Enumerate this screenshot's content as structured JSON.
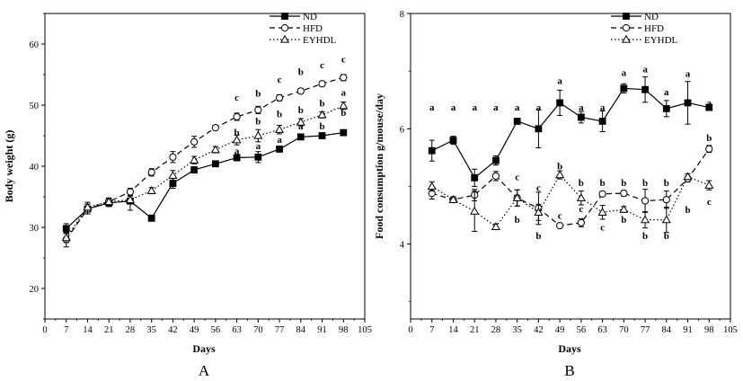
{
  "chart_data": [
    {
      "type": "line",
      "panel_label": "A",
      "xlabel": "Days",
      "ylabel": "Body weight (g)",
      "xlim": [
        0,
        105
      ],
      "ylim": [
        15,
        65
      ],
      "x_ticks": [
        0,
        7,
        14,
        21,
        28,
        35,
        42,
        49,
        56,
        63,
        70,
        77,
        84,
        91,
        98,
        105
      ],
      "y_ticks": [
        20,
        30,
        40,
        50,
        60
      ],
      "x": [
        7,
        14,
        21,
        28,
        35,
        42,
        49,
        56,
        63,
        70,
        77,
        84,
        91,
        98
      ],
      "legend_position": "top-right",
      "series": [
        {
          "name": "ND",
          "marker": "filled-square",
          "line": "solid",
          "values": [
            29.8,
            33,
            34,
            34.3,
            31.5,
            37.2,
            39.4,
            40.4,
            41.4,
            41.5,
            42.8,
            44.8,
            45,
            45.5
          ],
          "errors": [
            0.8,
            0.8,
            0.6,
            1.5,
            0.5,
            0.8,
            0.5,
            0.4,
            0.5,
            0.9,
            0.4,
            0.4,
            0.3,
            0.3
          ]
        },
        {
          "name": "HFD",
          "marker": "open-circle",
          "line": "dashed",
          "values": [
            28,
            33,
            34.2,
            35.8,
            39,
            41.5,
            44,
            46.3,
            48.1,
            49.2,
            51.2,
            52.3,
            53.5,
            54.5
          ],
          "errors": [
            1.2,
            0.8,
            0.6,
            0.6,
            0.6,
            0.9,
            0.9,
            0.4,
            0.6,
            0.6,
            0.5,
            0.4,
            0.4,
            0.5
          ]
        },
        {
          "name": "EYHDL",
          "marker": "open-triangle",
          "line": "dotted",
          "values": [
            28.3,
            33.3,
            34.2,
            34.5,
            36,
            38.5,
            41,
            42.7,
            44.3,
            45,
            46,
            47.2,
            48.4,
            49.9
          ],
          "errors": [
            0.8,
            0.8,
            0.6,
            0.6,
            0.5,
            0.8,
            0.6,
            0.5,
            0.8,
            1.0,
            0.7,
            0.6,
            0.5,
            0.6
          ]
        }
      ],
      "significance_labels": [
        {
          "x": 63,
          "y": 51.3,
          "text": "c"
        },
        {
          "x": 63,
          "y": 45.6,
          "text": "b"
        },
        {
          "x": 63,
          "y": 42.6,
          "text": "a"
        },
        {
          "x": 70,
          "y": 52.0,
          "text": "b"
        },
        {
          "x": 70,
          "y": 47.4,
          "text": "b"
        },
        {
          "x": 70,
          "y": 43.4,
          "text": "a"
        },
        {
          "x": 77,
          "y": 54.3,
          "text": "c"
        },
        {
          "x": 77,
          "y": 48.6,
          "text": "b"
        },
        {
          "x": 77,
          "y": 44.4,
          "text": "a"
        },
        {
          "x": 84,
          "y": 55.5,
          "text": "b"
        },
        {
          "x": 84,
          "y": 49.3,
          "text": "b"
        },
        {
          "x": 84,
          "y": 46.6,
          "text": "a"
        },
        {
          "x": 91,
          "y": 56.6,
          "text": "c"
        },
        {
          "x": 91,
          "y": 50.4,
          "text": "b"
        },
        {
          "x": 91,
          "y": 46.6,
          "text": "b"
        },
        {
          "x": 98,
          "y": 57.6,
          "text": "c"
        },
        {
          "x": 98,
          "y": 52.1,
          "text": "a"
        },
        {
          "x": 98,
          "y": 48.8,
          "text": "b"
        }
      ]
    },
    {
      "type": "line",
      "panel_label": "B",
      "xlabel": "Days",
      "ylabel": "Food consumption g/mouse/day",
      "xlim": [
        0,
        105
      ],
      "ylim": [
        2.7,
        8
      ],
      "x_ticks": [
        0,
        7,
        14,
        21,
        28,
        35,
        42,
        49,
        56,
        63,
        70,
        77,
        84,
        91,
        98,
        105
      ],
      "y_ticks": [
        4,
        6,
        8
      ],
      "x": [
        7,
        14,
        21,
        28,
        35,
        42,
        49,
        56,
        63,
        70,
        77,
        84,
        91,
        98
      ],
      "legend_position": "top-right",
      "series": [
        {
          "name": "ND",
          "marker": "filled-square",
          "line": "solid",
          "values": [
            5.62,
            5.8,
            5.15,
            5.45,
            6.13,
            6.0,
            6.45,
            6.2,
            6.13,
            6.7,
            6.68,
            6.35,
            6.45,
            6.37
          ],
          "errors": [
            0.18,
            0.07,
            0.15,
            0.08,
            0.0,
            0.33,
            0.22,
            0.1,
            0.18,
            0.08,
            0.22,
            0.14,
            0.37,
            0.05
          ]
        },
        {
          "name": "HFD",
          "marker": "open-circle",
          "line": "dashed",
          "values": [
            4.88,
            4.77,
            4.85,
            5.18,
            4.8,
            4.62,
            4.32,
            4.37,
            4.87,
            4.88,
            4.75,
            4.77,
            5.13,
            5.65
          ],
          "errors": [
            0.1,
            0.04,
            0.1,
            0.08,
            0.14,
            0.28,
            0.03,
            0.07,
            0.03,
            0.05,
            0.2,
            0.15,
            0.05,
            0.06
          ]
        },
        {
          "name": "EYHDL",
          "marker": "open-triangle",
          "line": "dotted",
          "values": [
            5.0,
            4.77,
            4.57,
            4.3,
            4.8,
            4.55,
            5.2,
            4.8,
            4.55,
            4.6,
            4.42,
            4.42,
            5.17,
            5.02
          ],
          "errors": [
            0.08,
            0.05,
            0.35,
            0.05,
            0.14,
            0.14,
            0.07,
            0.12,
            0.12,
            0.05,
            0.14,
            0.22,
            0.05,
            0.08
          ]
        }
      ],
      "significance_labels": [
        {
          "x": 7,
          "y": 6.38,
          "text": "a"
        },
        {
          "x": 14,
          "y": 6.38,
          "text": "a"
        },
        {
          "x": 21,
          "y": 6.38,
          "text": "a"
        },
        {
          "x": 28,
          "y": 6.38,
          "text": "a"
        },
        {
          "x": 35,
          "y": 6.38,
          "text": "a"
        },
        {
          "x": 42,
          "y": 6.38,
          "text": "a"
        },
        {
          "x": 49,
          "y": 6.84,
          "text": "a"
        },
        {
          "x": 56,
          "y": 6.38,
          "text": "a"
        },
        {
          "x": 63,
          "y": 6.38,
          "text": "a"
        },
        {
          "x": 70,
          "y": 6.98,
          "text": "a"
        },
        {
          "x": 77,
          "y": 7.04,
          "text": "a"
        },
        {
          "x": 84,
          "y": 6.64,
          "text": "a"
        },
        {
          "x": 91,
          "y": 6.96,
          "text": "a"
        },
        {
          "x": 98,
          "y": 6.46,
          "text": "a"
        },
        {
          "x": 35,
          "y": 5.17,
          "text": "c"
        },
        {
          "x": 35,
          "y": 4.43,
          "text": "b"
        },
        {
          "x": 42,
          "y": 4.98,
          "text": "c"
        },
        {
          "x": 42,
          "y": 4.15,
          "text": "b"
        },
        {
          "x": 49,
          "y": 5.36,
          "text": "b"
        },
        {
          "x": 49,
          "y": 4.5,
          "text": "c"
        },
        {
          "x": 56,
          "y": 5.07,
          "text": "b"
        },
        {
          "x": 56,
          "y": 4.62,
          "text": "c"
        },
        {
          "x": 63,
          "y": 5.07,
          "text": "b"
        },
        {
          "x": 63,
          "y": 4.3,
          "text": "c"
        },
        {
          "x": 70,
          "y": 5.07,
          "text": "b"
        },
        {
          "x": 70,
          "y": 4.43,
          "text": "b"
        },
        {
          "x": 77,
          "y": 5.07,
          "text": "b"
        },
        {
          "x": 77,
          "y": 4.15,
          "text": "b"
        },
        {
          "x": 84,
          "y": 5.07,
          "text": "b"
        },
        {
          "x": 84,
          "y": 4.15,
          "text": "b"
        },
        {
          "x": 91,
          "y": 4.6,
          "text": "b"
        },
        {
          "x": 98,
          "y": 5.85,
          "text": "b"
        },
        {
          "x": 98,
          "y": 4.74,
          "text": "c"
        }
      ]
    }
  ]
}
